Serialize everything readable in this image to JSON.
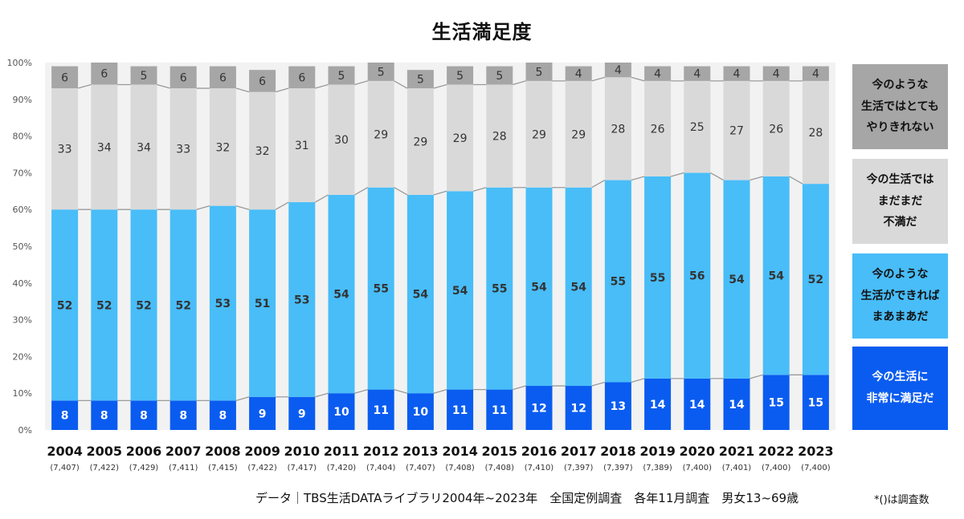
{
  "title": "生活満足度",
  "colors": {
    "very_satisfied": "#0a5cf0",
    "satisfied": "#48bdf8",
    "somewhat_dissatisfied": "#d9d9d9",
    "very_dissatisfied": "#a6a6a6",
    "plot_background": "#f2f2f2",
    "connector": "#9a9a9a"
  },
  "legend": [
    {
      "key": "very_dissatisfied",
      "label": "今のような\n生活ではとても\nやりきれない"
    },
    {
      "key": "somewhat_dissatisfied",
      "label": "今の生活では\nまだまだ\n不満だ"
    },
    {
      "key": "satisfied",
      "label": "今のような\n生活ができれば\nまあまあだ"
    },
    {
      "key": "very_satisfied",
      "label": "今の生活に\n非常に満足だ"
    }
  ],
  "footer": "データ｜TBS生活DATAライブラリ2004年~2023年　全国定例調査　各年11月調査　男女13~69歳",
  "note": "*()は調査数",
  "chart_data": {
    "type": "bar",
    "stacked": true,
    "percent": true,
    "ylim": [
      0,
      100
    ],
    "yticks": [
      "0%",
      "10%",
      "20%",
      "30%",
      "40%",
      "50%",
      "60%",
      "70%",
      "80%",
      "90%",
      "100%"
    ],
    "categories": [
      "2004",
      "2005",
      "2006",
      "2007",
      "2008",
      "2009",
      "2010",
      "2011",
      "2012",
      "2013",
      "2014",
      "2015",
      "2016",
      "2017",
      "2018",
      "2019",
      "2020",
      "2021",
      "2022",
      "2023"
    ],
    "sample_sizes": [
      "(7,407)",
      "(7,422)",
      "(7,429)",
      "(7,411)",
      "(7,415)",
      "(7,422)",
      "(7,417)",
      "(7,420)",
      "(7,404)",
      "(7,407)",
      "(7,408)",
      "(7,408)",
      "(7,410)",
      "(7,397)",
      "(7,397)",
      "(7,389)",
      "(7,400)",
      "(7,401)",
      "(7,400)",
      "(7,400)"
    ],
    "series": [
      {
        "name": "今の生活に非常に満足だ",
        "key": "very_satisfied",
        "values": [
          8,
          8,
          8,
          8,
          8,
          9,
          9,
          10,
          11,
          10,
          11,
          11,
          12,
          12,
          13,
          14,
          14,
          14,
          15,
          15
        ]
      },
      {
        "name": "今のような生活ができればまあまあだ",
        "key": "satisfied",
        "values": [
          52,
          52,
          52,
          52,
          53,
          51,
          53,
          54,
          55,
          54,
          54,
          55,
          54,
          54,
          55,
          55,
          56,
          54,
          54,
          52
        ]
      },
      {
        "name": "今の生活ではまだまだ不満だ",
        "key": "somewhat_dissatisfied",
        "values": [
          33,
          34,
          34,
          33,
          32,
          32,
          31,
          30,
          29,
          29,
          29,
          28,
          29,
          29,
          28,
          26,
          25,
          27,
          26,
          28
        ]
      },
      {
        "name": "今のような生活ではとてもやりきれない",
        "key": "very_dissatisfied",
        "values": [
          6,
          6,
          5,
          6,
          6,
          6,
          6,
          5,
          5,
          5,
          5,
          5,
          5,
          4,
          4,
          4,
          4,
          4,
          4,
          4
        ]
      }
    ],
    "grid": false,
    "legend_position": "right"
  }
}
